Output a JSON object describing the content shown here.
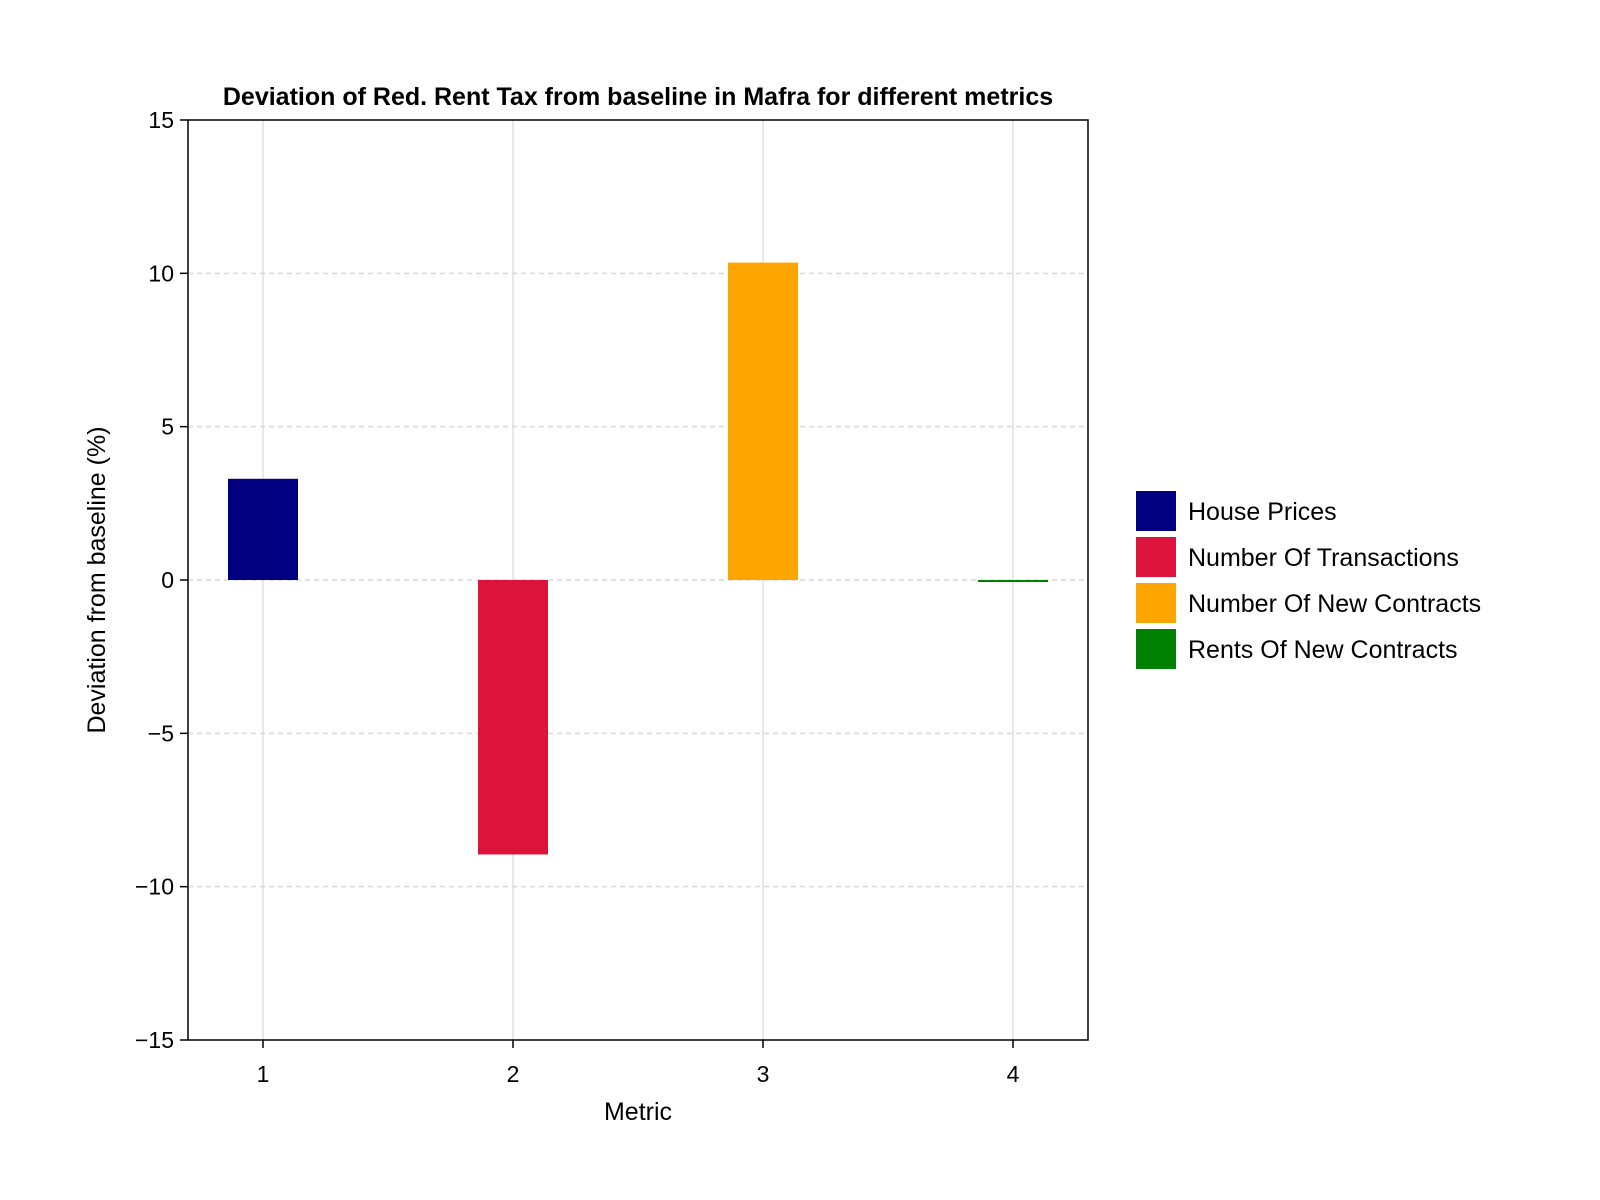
{
  "chart_data": {
    "type": "bar",
    "title": "Deviation of Red. Rent Tax from baseline in Mafra for different metrics",
    "xlabel": "Metric",
    "ylabel": "Deviation from baseline (%)",
    "categories": [
      "1",
      "2",
      "3",
      "4"
    ],
    "series": [
      {
        "name": "House Prices",
        "x": 1,
        "value": 3.3,
        "color": "#000080"
      },
      {
        "name": "Number Of Transactions",
        "x": 2,
        "value": -8.95,
        "color": "#dc143c"
      },
      {
        "name": "Number Of New Contracts",
        "x": 3,
        "value": 10.35,
        "color": "#ffa500"
      },
      {
        "name": "Rents Of New Contracts",
        "x": 4,
        "value": -0.05,
        "color": "#008000"
      }
    ],
    "xticks": [
      "1",
      "2",
      "3",
      "4"
    ],
    "yticks": [
      15,
      10,
      5,
      0,
      -5,
      -10,
      -15
    ],
    "ytick_labels": [
      "15",
      "10",
      "5",
      "0",
      "−5",
      "−10",
      "−15"
    ],
    "ylim": [
      -15,
      15
    ],
    "xlim": [
      0.7,
      4.3
    ],
    "grid": true,
    "legend_position": "right"
  }
}
